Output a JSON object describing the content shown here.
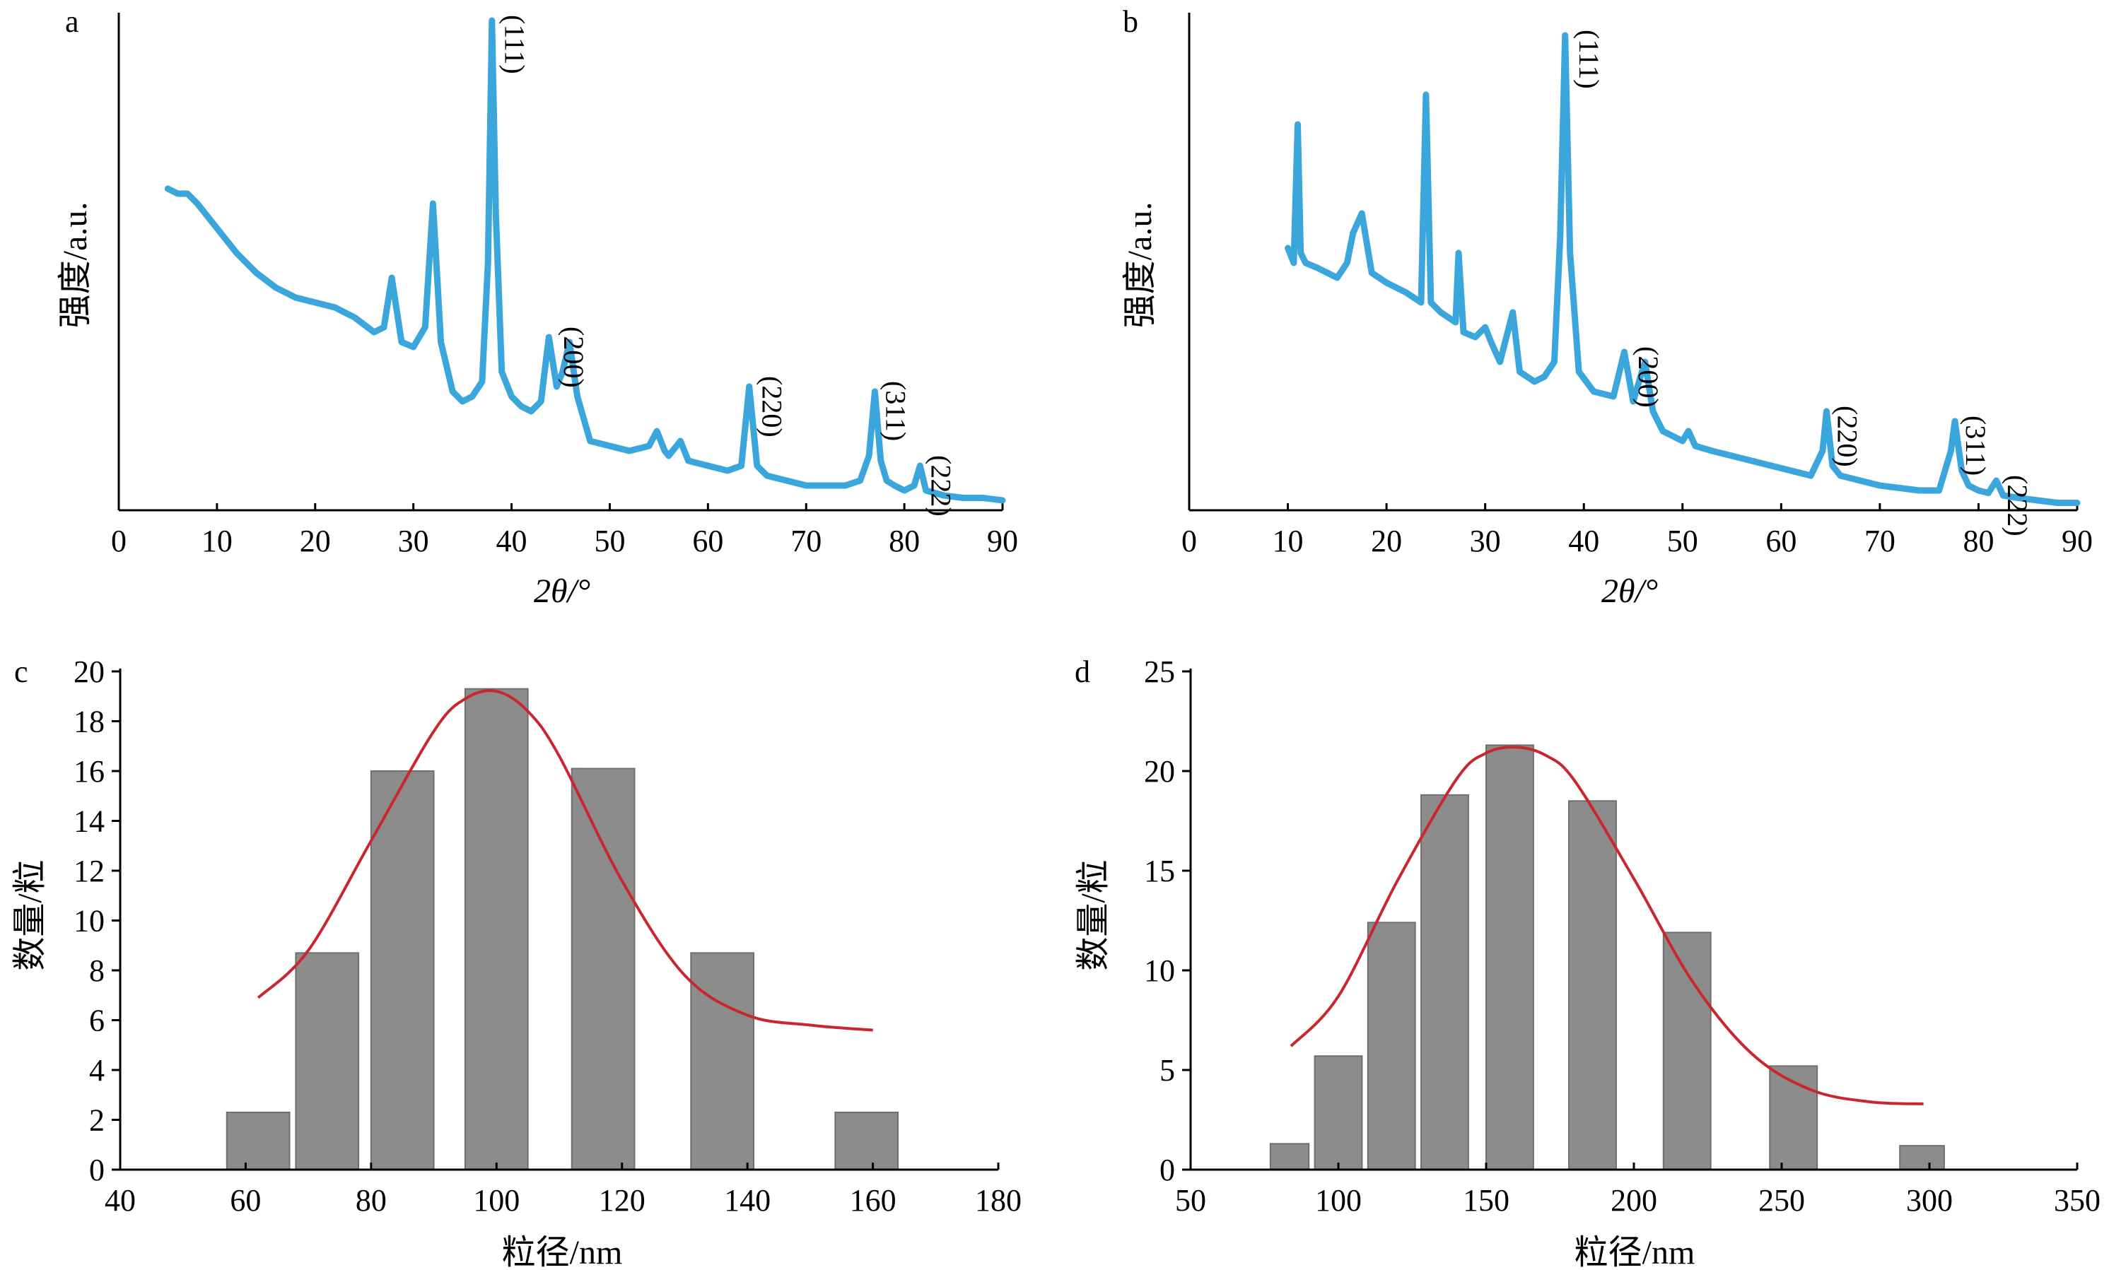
{
  "chart_data": [
    {
      "panel": "a",
      "type": "line",
      "xlabel": "2θ/°",
      "ylabel": "强度/a.u.",
      "xlim": [
        0,
        90
      ],
      "xticks": [
        0,
        10,
        20,
        30,
        40,
        50,
        60,
        70,
        80,
        90
      ],
      "ylim": [
        0,
        100
      ],
      "series_color": "#3AA6DC",
      "x": [
        5,
        6,
        7,
        8,
        10,
        12,
        14,
        16,
        18,
        20,
        22,
        24,
        26,
        27,
        27.8,
        28.8,
        30,
        31.2,
        32,
        32.8,
        34,
        35,
        36,
        37,
        37.6,
        38,
        38.4,
        39,
        40,
        41,
        42,
        43,
        43.8,
        44.6,
        45.2,
        45.9,
        46.7,
        48,
        50,
        52,
        54,
        54.8,
        55.6,
        56,
        57.2,
        58,
        60,
        62,
        63.4,
        64.2,
        65,
        66,
        68,
        70,
        72,
        74,
        75.5,
        76.4,
        77,
        77.6,
        78.2,
        79,
        80,
        81,
        81.6,
        82.2,
        84,
        86,
        88,
        90
      ],
      "y": [
        65,
        64,
        64,
        62,
        57,
        52,
        48,
        45,
        43,
        42,
        41,
        39,
        36,
        37,
        47,
        34,
        33,
        37,
        62,
        34,
        24,
        22,
        23,
        26,
        50,
        99,
        60,
        28,
        23,
        21,
        20,
        22,
        35,
        25,
        28,
        34,
        23,
        14,
        13,
        12,
        13,
        16,
        12,
        11,
        14,
        10,
        9,
        8,
        9,
        25,
        9,
        7,
        6,
        5,
        5,
        5,
        6,
        11,
        24,
        10,
        6,
        5,
        4,
        5,
        9,
        4,
        3,
        2.5,
        2.5,
        2
      ],
      "annotations": [
        {
          "label": "(111)",
          "x": 38.5,
          "y": 99
        },
        {
          "label": "(200)",
          "x": 44.5,
          "y": 36
        },
        {
          "label": "(220)",
          "x": 64.7,
          "y": 26
        },
        {
          "label": "(311)",
          "x": 77.3,
          "y": 25
        },
        {
          "label": "(222)",
          "x": 81.9,
          "y": 10
        }
      ]
    },
    {
      "panel": "b",
      "type": "line",
      "xlabel": "2θ/°",
      "ylabel": "强度/a.u.",
      "xlim": [
        0,
        90
      ],
      "xticks": [
        0,
        10,
        20,
        30,
        40,
        50,
        60,
        70,
        80,
        90
      ],
      "ylim": [
        0,
        100
      ],
      "series_color": "#3AA6DC",
      "x": [
        10,
        10.6,
        11,
        11.3,
        11.8,
        13,
        15,
        16,
        16.6,
        17.5,
        18.5,
        20,
        22,
        23.5,
        24,
        24.5,
        25.5,
        27,
        27.3,
        27.8,
        29,
        30,
        30.6,
        31.5,
        32.8,
        33.5,
        35,
        36,
        37,
        37.6,
        38.1,
        38.6,
        39.5,
        41,
        43,
        44.1,
        45,
        46.2,
        47,
        48,
        50,
        50.6,
        51.3,
        53,
        55,
        57,
        59,
        61,
        63,
        64.2,
        64.6,
        65.2,
        66,
        68,
        70,
        72,
        74,
        76,
        77.2,
        77.6,
        78.3,
        79,
        80,
        81,
        81.8,
        82.5,
        84,
        86,
        88,
        90
      ],
      "y": [
        53,
        50,
        78,
        52,
        50,
        49,
        47,
        50,
        56,
        60,
        48,
        46,
        44,
        42,
        84,
        42,
        40,
        38,
        52,
        36,
        35,
        37,
        34,
        30,
        40,
        28,
        26,
        27,
        30,
        55,
        96,
        52,
        28,
        24,
        23,
        32,
        22,
        30,
        20,
        16,
        14,
        16,
        13,
        12,
        11,
        10,
        9,
        8,
        7,
        12,
        20,
        9,
        7,
        6,
        5,
        4.5,
        4,
        4,
        12,
        18,
        8,
        5,
        4,
        3.5,
        6,
        3,
        2.5,
        2,
        1.5,
        1.5
      ],
      "annotations": [
        {
          "label": "(111)",
          "x": 38.7,
          "y": 96
        },
        {
          "label": "(200)",
          "x": 44.7,
          "y": 32
        },
        {
          "label": "(220)",
          "x": 64.9,
          "y": 20
        },
        {
          "label": "(311)",
          "x": 77.9,
          "y": 18
        },
        {
          "label": "(222)",
          "x": 82.1,
          "y": 6
        }
      ]
    },
    {
      "panel": "c",
      "type": "bar",
      "xlabel": "粒径/nm",
      "ylabel": "数量/粒",
      "xlim": [
        40,
        180
      ],
      "xticks": [
        40,
        60,
        80,
        100,
        120,
        140,
        160,
        180
      ],
      "ylim": [
        0,
        20
      ],
      "yticks": [
        0,
        2,
        4,
        6,
        8,
        10,
        12,
        14,
        16,
        18,
        20
      ],
      "bar_color": "#8C8C8C",
      "curve_color": "#C8282D",
      "bars": [
        {
          "x0": 57,
          "x1": 67,
          "value": 2.3
        },
        {
          "x0": 68,
          "x1": 78,
          "value": 8.7
        },
        {
          "x0": 80,
          "x1": 90,
          "value": 16.0
        },
        {
          "x0": 95,
          "x1": 105,
          "value": 19.3
        },
        {
          "x0": 112,
          "x1": 122,
          "value": 16.1
        },
        {
          "x0": 131,
          "x1": 141,
          "value": 8.7
        },
        {
          "x0": 154,
          "x1": 164,
          "value": 2.3
        }
      ],
      "fit_curve": {
        "x": [
          62,
          70,
          80,
          90,
          95,
          100,
          105,
          110,
          120,
          130,
          140,
          150,
          160
        ],
        "y": [
          6.9,
          8.8,
          13.2,
          17.6,
          18.9,
          19.2,
          18.4,
          16.6,
          11.6,
          7.8,
          6.2,
          5.8,
          5.6
        ]
      }
    },
    {
      "panel": "d",
      "type": "bar",
      "xlabel": "粒径/nm",
      "ylabel": "数量/粒",
      "xlim": [
        50,
        350
      ],
      "xticks": [
        50,
        100,
        150,
        200,
        250,
        300,
        350
      ],
      "ylim": [
        0,
        25
      ],
      "yticks": [
        0,
        5,
        10,
        15,
        20,
        25
      ],
      "bar_color": "#8C8C8C",
      "curve_color": "#C8282D",
      "bars": [
        {
          "x0": 77,
          "x1": 90,
          "value": 1.3
        },
        {
          "x0": 92,
          "x1": 108,
          "value": 5.7
        },
        {
          "x0": 110,
          "x1": 126,
          "value": 12.4
        },
        {
          "x0": 128,
          "x1": 144,
          "value": 18.8
        },
        {
          "x0": 150,
          "x1": 166,
          "value": 21.3
        },
        {
          "x0": 178,
          "x1": 194,
          "value": 18.5
        },
        {
          "x0": 210,
          "x1": 226,
          "value": 11.9
        },
        {
          "x0": 246,
          "x1": 262,
          "value": 5.2
        },
        {
          "x0": 290,
          "x1": 305,
          "value": 1.2
        }
      ],
      "fit_curve": {
        "x": [
          84,
          100,
          120,
          140,
          150,
          160,
          170,
          180,
          200,
          220,
          240,
          260,
          280,
          298
        ],
        "y": [
          6.2,
          8.7,
          14.5,
          19.6,
          20.9,
          21.2,
          20.8,
          19.5,
          14.6,
          9.4,
          5.8,
          4.0,
          3.4,
          3.3
        ]
      }
    }
  ],
  "panel_letters": {
    "a": "a",
    "b": "b",
    "c": "c",
    "d": "d"
  }
}
